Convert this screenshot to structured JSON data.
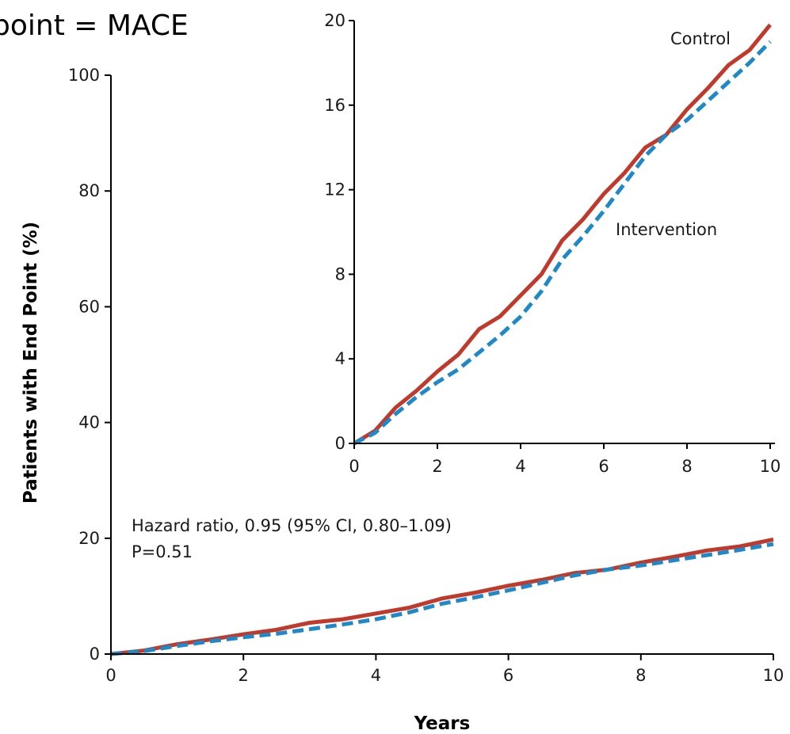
{
  "header": {
    "title": "point = MACE"
  },
  "annotations": {
    "hazard_ratio": "Hazard ratio, 0.95 (95% CI, 0.80–1.09)",
    "p_value": "P=0.51"
  },
  "colors": {
    "control": "#c0392b",
    "intervention": "#1f88c8"
  },
  "chart_data": [
    {
      "id": "main",
      "type": "line",
      "title": "",
      "xlabel": "Years",
      "ylabel": "Patients with End Point (%)",
      "xlim": [
        0,
        10
      ],
      "ylim": [
        0,
        100
      ],
      "xticks": [
        0,
        2,
        4,
        6,
        8,
        10
      ],
      "yticks": [
        0,
        20,
        40,
        60,
        80,
        100
      ],
      "xtick_labels": [
        "0",
        "2",
        "4",
        "6",
        "8",
        "10"
      ],
      "ytick_labels": [
        "0",
        "20",
        "40",
        "60",
        "80",
        "100"
      ],
      "grid": false,
      "series": [
        {
          "key": "control",
          "style": "solid",
          "x": [
            0,
            0.5,
            1,
            1.5,
            2,
            2.5,
            3,
            3.5,
            4,
            4.5,
            5,
            5.5,
            6,
            6.5,
            7,
            7.5,
            8,
            8.5,
            9,
            9.5,
            10
          ],
          "values": [
            0,
            0.6,
            1.7,
            2.5,
            3.4,
            4.2,
            5.4,
            6.0,
            7.0,
            8.0,
            9.6,
            10.6,
            11.8,
            12.8,
            14.0,
            14.6,
            15.8,
            16.8,
            17.9,
            18.6,
            19.8
          ]
        },
        {
          "key": "intervention",
          "style": "dashed",
          "x": [
            0,
            0.5,
            1,
            1.5,
            2,
            2.5,
            3,
            3.5,
            4,
            4.5,
            5,
            5.5,
            6,
            6.5,
            7,
            7.5,
            8,
            8.5,
            9,
            9.5,
            10
          ],
          "values": [
            0,
            0.5,
            1.4,
            2.2,
            2.9,
            3.5,
            4.3,
            5.1,
            6.0,
            7.2,
            8.7,
            9.8,
            11.0,
            12.3,
            13.6,
            14.6,
            15.3,
            16.2,
            17.1,
            18.0,
            19.0
          ]
        }
      ]
    },
    {
      "id": "inset",
      "type": "line",
      "title": "",
      "xlabel": "",
      "ylabel": "",
      "xlim": [
        0,
        10
      ],
      "ylim": [
        0,
        20
      ],
      "xticks": [
        0,
        2,
        4,
        6,
        8,
        10
      ],
      "yticks": [
        0,
        4,
        8,
        12,
        16,
        20
      ],
      "xtick_labels": [
        "0",
        "2",
        "4",
        "6",
        "8",
        "10"
      ],
      "ytick_labels": [
        "0",
        "4",
        "8",
        "12",
        "16",
        "20"
      ],
      "grid": false,
      "series": [
        {
          "key": "control",
          "name": "Control",
          "style": "solid",
          "x": [
            0,
            0.5,
            1,
            1.5,
            2,
            2.5,
            3,
            3.5,
            4,
            4.5,
            5,
            5.5,
            6,
            6.5,
            7,
            7.5,
            8,
            8.5,
            9,
            9.5,
            10
          ],
          "values": [
            0,
            0.6,
            1.7,
            2.5,
            3.4,
            4.2,
            5.4,
            6.0,
            7.0,
            8.0,
            9.6,
            10.6,
            11.8,
            12.8,
            14.0,
            14.6,
            15.8,
            16.8,
            17.9,
            18.6,
            19.8
          ]
        },
        {
          "key": "intervention",
          "name": "Intervention",
          "style": "dashed",
          "x": [
            0,
            0.5,
            1,
            1.5,
            2,
            2.5,
            3,
            3.5,
            4,
            4.5,
            5,
            5.5,
            6,
            6.5,
            7,
            7.5,
            8,
            8.5,
            9,
            9.5,
            10
          ],
          "values": [
            0,
            0.5,
            1.4,
            2.2,
            2.9,
            3.5,
            4.3,
            5.1,
            6.0,
            7.2,
            8.7,
            9.8,
            11.0,
            12.3,
            13.6,
            14.6,
            15.3,
            16.2,
            17.1,
            18.0,
            19.0
          ]
        }
      ]
    }
  ]
}
